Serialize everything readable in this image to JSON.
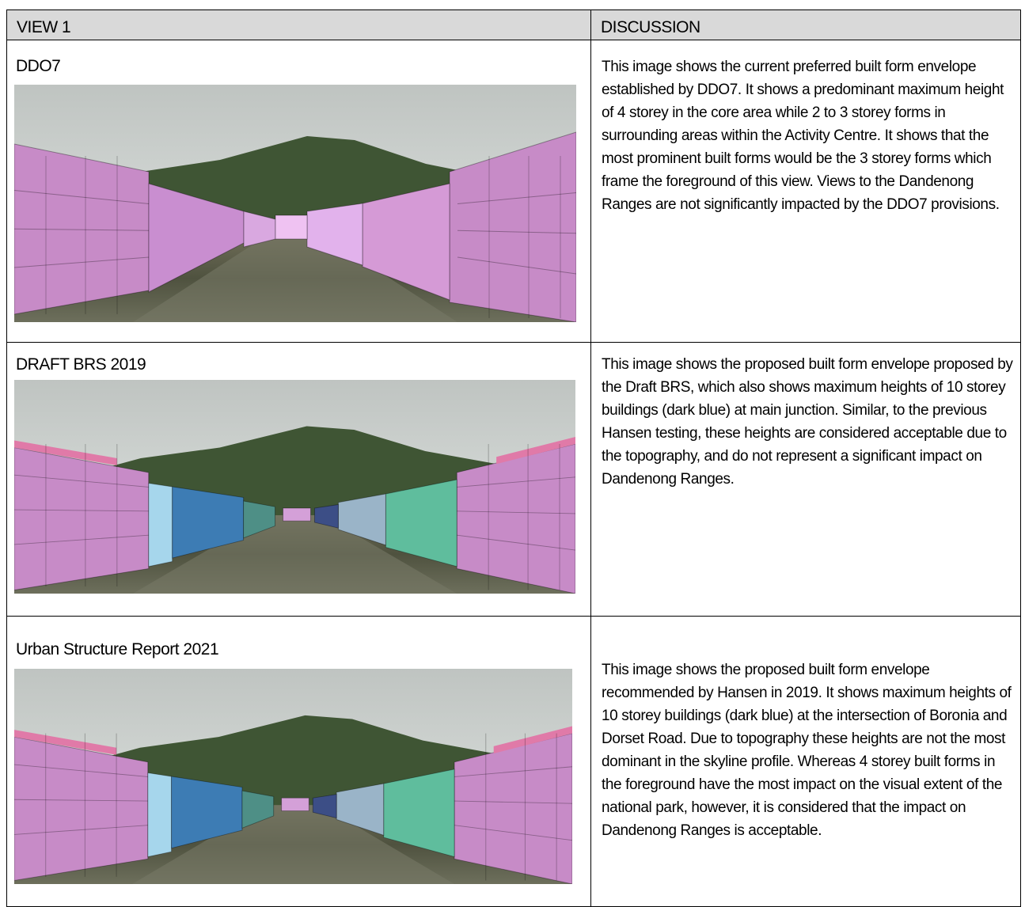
{
  "table": {
    "headers": [
      "VIEW 1",
      "DISCUSSION"
    ],
    "rows": [
      {
        "view": "DDO7",
        "discussion": "This image shows the current preferred built form envelope established by DDO7. It shows a predominant maximum height of 4 storey in the core area while 2 to 3 storey forms in surrounding areas within the Activity Centre. It shows that the most prominent built forms would be the 3 storey forms which frame the foreground of this view. Views to the Dandenong Ranges are not significantly impacted by the DDO7 provisions."
      },
      {
        "view": "DRAFT BRS 2019",
        "discussion": "This image shows the proposed built form envelope proposed by the Draft BRS, which also shows maximum heights of 10 storey buildings (dark blue) at main junction. Similar, to the previous Hansen testing, these heights are considered acceptable due to the topography, and do not represent a significant impact on Dandenong Ranges."
      },
      {
        "view": "Urban Structure Report 2021",
        "discussion": "This image shows the proposed built form envelope recommended by Hansen in 2019. It shows maximum heights of 10 storey buildings (dark blue) at the intersection of Boronia and Dorset Road. Due to topography these heights are not the most dominant in the skyline profile. Whereas 4 storey built forms in the foreground have the most impact on the visual extent of the national park, however, it is considered that the impact on Dandenong Ranges is acceptable."
      }
    ]
  }
}
